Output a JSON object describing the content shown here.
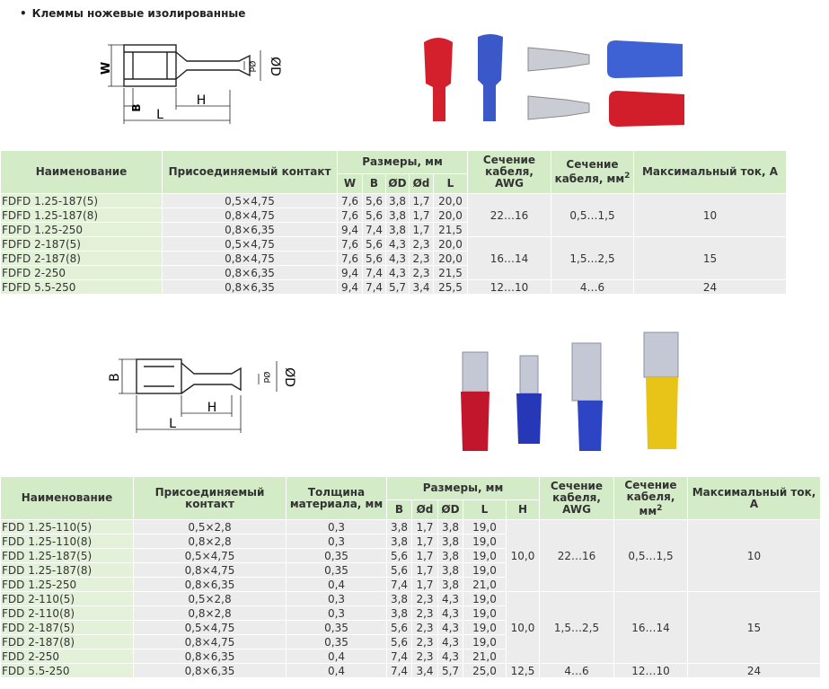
{
  "title": "Клеммы ножевые изолированные",
  "diagram1": {
    "labels": [
      "W",
      "B",
      "L",
      "H",
      "Ød",
      "ØD"
    ]
  },
  "diagram2": {
    "labels": [
      "B",
      "L",
      "H",
      "Ød",
      "ØD"
    ]
  },
  "table1": {
    "headers": [
      {
        "text": "Наименование"
      },
      {
        "text": "Присоединяемый контакт"
      },
      {
        "text": "Размеры, мм",
        "sub": [
          "W",
          "B",
          "ØD",
          "Ød",
          "L"
        ]
      },
      {
        "text": "Сечение кабеля, AWG"
      },
      {
        "text": "Сечение кабеля, мм",
        "sup": "2"
      },
      {
        "text": "Максимальный ток, А"
      }
    ],
    "groups": [
      {
        "rows": [
          [
            "FDFD 1.25-187(5)",
            "0,5×4,75",
            "7,6",
            "5,6",
            "3,8",
            "1,7",
            "20,0"
          ],
          [
            "FDFD 1.25-187(8)",
            "0,8×4,75",
            "7,6",
            "5,6",
            "3,8",
            "1,7",
            "20,0"
          ],
          [
            "FDFD 1.25-250",
            "0,8×6,35",
            "9,4",
            "7,4",
            "3,8",
            "1,7",
            "21,5"
          ]
        ],
        "merged": [
          "22…16",
          "0,5…1,5",
          "10"
        ]
      },
      {
        "rows": [
          [
            "FDFD 2-187(5)",
            "0,5×4,75",
            "7,6",
            "5,6",
            "4,3",
            "2,3",
            "20,0"
          ],
          [
            "FDFD 2-187(8)",
            "0,8×4,75",
            "7,6",
            "5,6",
            "4,3",
            "2,3",
            "20,0"
          ],
          [
            "FDFD 2-250",
            "0,8×6,35",
            "9,4",
            "7,4",
            "4,3",
            "2,3",
            "21,5"
          ]
        ],
        "merged": [
          "16…14",
          "1,5…2,5",
          "15"
        ]
      },
      {
        "rows": [
          [
            "FDFD 5.5-250",
            "0,8×6,35",
            "9,4",
            "7,4",
            "5,7",
            "3,4",
            "25,5"
          ]
        ],
        "merged": [
          "12…10",
          "4…6",
          "24"
        ]
      }
    ]
  },
  "table2": {
    "headers": [
      {
        "text": "Наименование"
      },
      {
        "text": "Присоединяемый контакт"
      },
      {
        "text": "Толщина материала, мм"
      },
      {
        "text": "Размеры, мм",
        "sub": [
          "B",
          "Ød",
          "ØD",
          "L",
          "H"
        ]
      },
      {
        "text": "Сечение кабеля, AWG"
      },
      {
        "text": "Сечение кабеля, мм",
        "sup": "2"
      },
      {
        "text": "Максимальный ток, А"
      }
    ],
    "groups": [
      {
        "rows": [
          [
            "FDD 1.25-110(5)",
            "0,5×2,8",
            "0,3",
            "3,8",
            "1,7",
            "3,8",
            "19,0"
          ],
          [
            "FDD 1.25-110(8)",
            "0,8×2,8",
            "0,3",
            "3,8",
            "1,7",
            "3,8",
            "19,0"
          ],
          [
            "FDD 1.25-187(5)",
            "0,5×4,75",
            "0,35",
            "5,6",
            "1,7",
            "3,8",
            "19,0"
          ],
          [
            "FDD 1.25-187(8)",
            "0,8×4,75",
            "0,35",
            "5,6",
            "1,7",
            "3,8",
            "19,0"
          ],
          [
            "FDD 1.25-250",
            "0,8×6,35",
            "0,4",
            "7,4",
            "1,7",
            "3,8",
            "21,0"
          ]
        ],
        "merged": [
          "10,0",
          "22…16",
          "0,5…1,5",
          "10"
        ]
      },
      {
        "rows": [
          [
            "FDD 2-110(5)",
            "0,5×2,8",
            "0,3",
            "3,8",
            "2,3",
            "4,3",
            "19,0"
          ],
          [
            "FDD 2-110(8)",
            "0,8×2,8",
            "0,3",
            "3,8",
            "2,3",
            "4,3",
            "19,0"
          ],
          [
            "FDD 2-187(5)",
            "0,5×4,75",
            "0,35",
            "5,6",
            "2,3",
            "4,3",
            "19,0"
          ],
          [
            "FDD 2-187(8)",
            "0,8×4,75",
            "0,35",
            "5,6",
            "2,3",
            "4,3",
            "19,0"
          ],
          [
            "FDD 2-250",
            "0,8×6,35",
            "0,4",
            "7,4",
            "2,3",
            "4,3",
            "21,0"
          ]
        ],
        "merged": [
          "10,0",
          "1,5…2,5",
          "16…14",
          "15"
        ]
      },
      {
        "rows": [
          [
            "FDD 5.5-250",
            "0,8×6,35",
            "0,4",
            "7,4",
            "3,4",
            "5,7",
            "25,0"
          ]
        ],
        "merged": [
          "12,5",
          "4…6",
          "12…10",
          "24"
        ]
      }
    ]
  }
}
